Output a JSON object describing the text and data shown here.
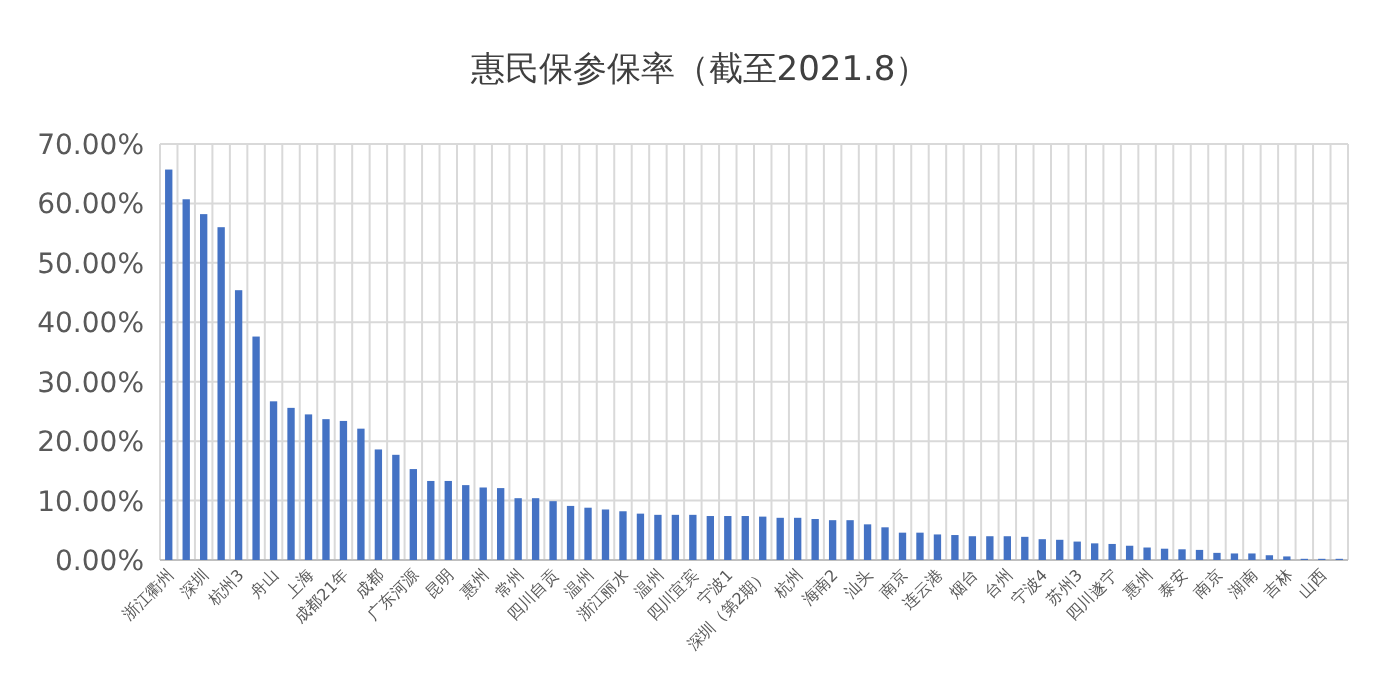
{
  "chart_data": {
    "type": "bar",
    "title": "惠民保参保率（截至2021.8）",
    "categories": [
      "浙江衢州",
      null,
      "深圳",
      null,
      "杭州3",
      null,
      "舟山",
      null,
      "上海",
      null,
      "成都21年",
      null,
      "成都",
      null,
      "广东河源",
      null,
      "昆明",
      null,
      "惠州",
      null,
      "常州",
      null,
      "四川自贡",
      null,
      "温州",
      null,
      "浙江丽水",
      null,
      "温州",
      null,
      "四川宜宾",
      null,
      "宁波1",
      null,
      "深圳（第2期）",
      null,
      "杭州",
      null,
      "海南2",
      null,
      "汕头",
      null,
      "南京",
      null,
      "连云港",
      null,
      "烟台",
      null,
      "台州",
      null,
      "宁波4",
      null,
      "苏州3",
      null,
      "四川遂宁",
      null,
      "惠州",
      null,
      "泰安",
      null,
      "南京",
      null,
      "湖南",
      null,
      "吉林",
      null,
      "山西",
      null
    ],
    "values": [
      0.657,
      0.607,
      0.582,
      0.56,
      0.454,
      0.376,
      0.267,
      0.256,
      0.245,
      0.237,
      0.234,
      0.221,
      0.186,
      0.177,
      0.153,
      0.133,
      0.133,
      0.126,
      0.122,
      0.121,
      0.104,
      0.104,
      0.099,
      0.091,
      0.088,
      0.085,
      0.082,
      0.078,
      0.076,
      0.076,
      0.076,
      0.074,
      0.074,
      0.074,
      0.073,
      0.071,
      0.071,
      0.069,
      0.067,
      0.067,
      0.06,
      0.055,
      0.046,
      0.046,
      0.043,
      0.042,
      0.04,
      0.04,
      0.04,
      0.039,
      0.035,
      0.034,
      0.031,
      0.028,
      0.027,
      0.024,
      0.021,
      0.019,
      0.018,
      0.017,
      0.012,
      0.011,
      0.011,
      0.008,
      0.006,
      0.002,
      0.002,
      0.002
    ],
    "color": "#4472c4",
    "ylim": [
      0,
      0.7
    ],
    "yticks": [
      {
        "value": 0,
        "label": "0.00%"
      },
      {
        "value": 0.1,
        "label": "10.00%"
      },
      {
        "value": 0.2,
        "label": "20.00%"
      },
      {
        "value": 0.3,
        "label": "30.00%"
      },
      {
        "value": 0.4,
        "label": "40.00%"
      },
      {
        "value": 0.5,
        "label": "50.00%"
      },
      {
        "value": 0.6,
        "label": "60.00%"
      },
      {
        "value": 0.7,
        "label": "70.00%"
      }
    ],
    "grid": true
  }
}
